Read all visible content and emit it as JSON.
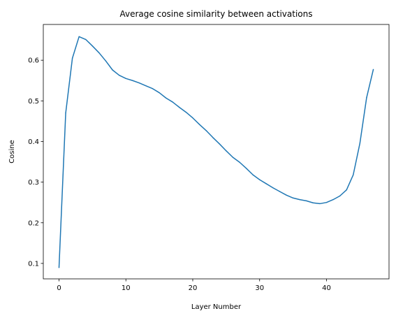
{
  "chart_data": {
    "type": "line",
    "title": "Average cosine similarity between activations",
    "xlabel": "Layer Number",
    "ylabel": "Cosine",
    "xlim": [
      -2.35,
      49.35
    ],
    "ylim": [
      0.062,
      0.688
    ],
    "xticks": [
      0,
      10,
      20,
      30,
      40
    ],
    "yticks": [
      0.1,
      0.2,
      0.3,
      0.4,
      0.5,
      0.6
    ],
    "ytick_labels": [
      "0.1",
      "0.2",
      "0.3",
      "0.4",
      "0.5",
      "0.6"
    ],
    "grid": false,
    "series": [
      {
        "color": "#1f77b4",
        "x": [
          0,
          1,
          2,
          3,
          4,
          5,
          6,
          7,
          8,
          9,
          10,
          11,
          12,
          13,
          14,
          15,
          16,
          17,
          18,
          19,
          20,
          21,
          22,
          23,
          24,
          25,
          26,
          27,
          28,
          29,
          30,
          31,
          32,
          33,
          34,
          35,
          36,
          37,
          38,
          39,
          40,
          41,
          42,
          43,
          44,
          45,
          46,
          47
        ],
        "y": [
          0.09,
          0.47,
          0.605,
          0.658,
          0.651,
          0.635,
          0.618,
          0.598,
          0.576,
          0.563,
          0.555,
          0.55,
          0.544,
          0.537,
          0.53,
          0.52,
          0.507,
          0.497,
          0.484,
          0.472,
          0.458,
          0.442,
          0.427,
          0.41,
          0.394,
          0.377,
          0.361,
          0.349,
          0.334,
          0.318,
          0.306,
          0.296,
          0.286,
          0.277,
          0.268,
          0.261,
          0.257,
          0.254,
          0.249,
          0.247,
          0.25,
          0.257,
          0.266,
          0.281,
          0.318,
          0.396,
          0.508,
          0.577
        ]
      }
    ]
  }
}
